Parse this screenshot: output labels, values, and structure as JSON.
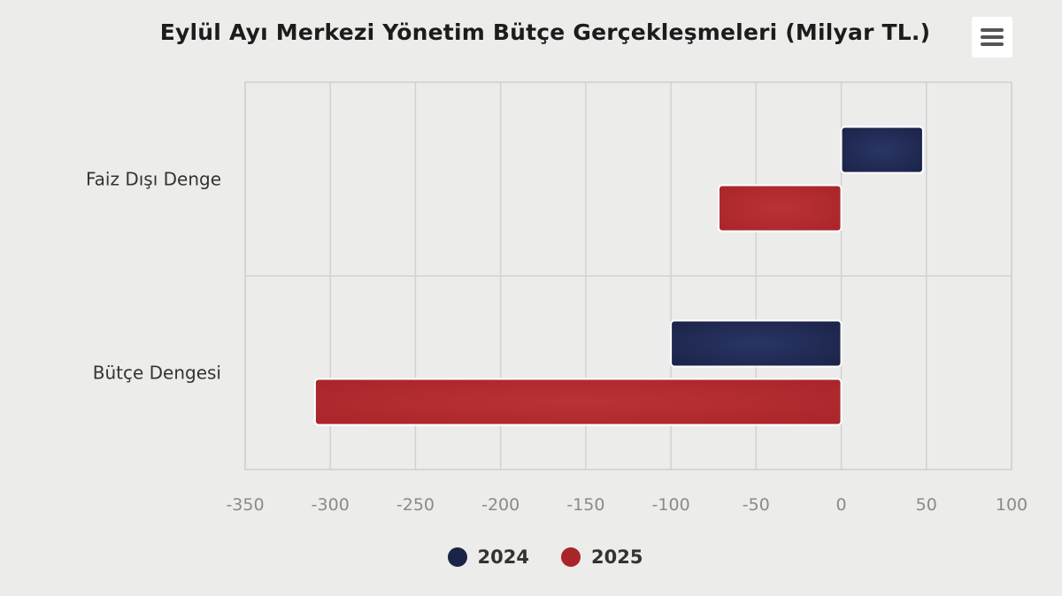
{
  "chart_data": {
    "type": "bar",
    "orientation": "horizontal",
    "title": "Eylül Ayı Merkezi Yönetim Bütçe Gerçekleşmeleri (Milyar TL.)",
    "categories": [
      "Faiz Dışı Denge",
      "Bütçe Dengesi"
    ],
    "series": [
      {
        "name": "2024",
        "color": "#1b2347",
        "values": [
          48,
          -100
        ]
      },
      {
        "name": "2025",
        "color": "#a8252a",
        "values": [
          -72,
          -309
        ]
      }
    ],
    "xlim": [
      -350,
      100
    ],
    "xticks": [
      "-350",
      "-300",
      "-250",
      "-200",
      "-150",
      "-100",
      "-50",
      "0",
      "50",
      "100"
    ],
    "grid": true,
    "legend_position": "bottom-center"
  },
  "menu": {
    "icon": "hamburger-menu-icon"
  }
}
